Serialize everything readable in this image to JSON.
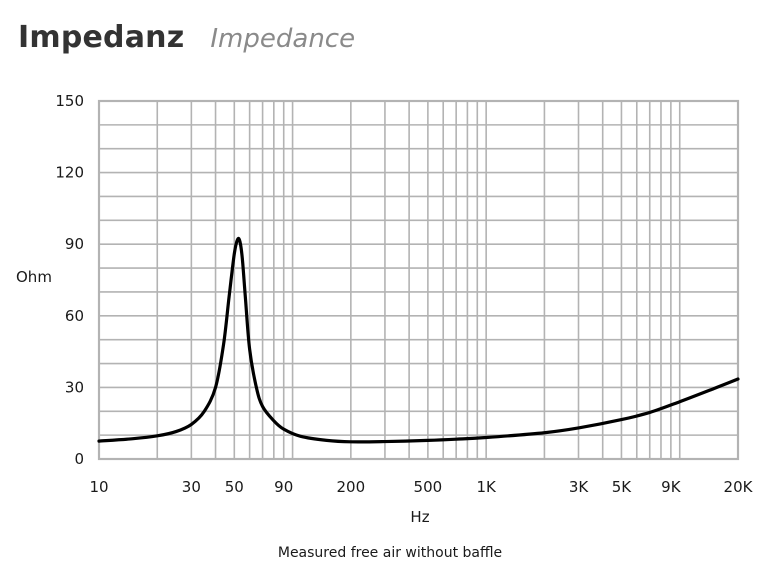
{
  "header": {
    "title": "Impedanz",
    "subtitle": "Impedance"
  },
  "footer": {
    "note": "Measured free air without baffle"
  },
  "chart_data": {
    "type": "line",
    "title": "Impedanz",
    "subtitle": "Impedance",
    "xlabel": "Hz",
    "ylabel": "Ohm",
    "xscale": "log",
    "xlim": [
      10,
      20000
    ],
    "ylim": [
      0,
      150
    ],
    "grid": true,
    "x_ticks": [
      10,
      30,
      50,
      90,
      200,
      500,
      1000,
      3000,
      5000,
      9000,
      20000
    ],
    "x_tick_labels": [
      "10",
      "30",
      "50",
      "90",
      "200",
      "500",
      "1K",
      "3K",
      "5K",
      "9K",
      "20K"
    ],
    "y_ticks": [
      0,
      30,
      60,
      90,
      120,
      150
    ],
    "y_tick_labels": [
      "0",
      "30",
      "60",
      "90",
      "120",
      "150"
    ],
    "x_gridlines": [
      10,
      20,
      30,
      40,
      50,
      60,
      70,
      80,
      90,
      100,
      200,
      300,
      400,
      500,
      600,
      700,
      800,
      900,
      1000,
      2000,
      3000,
      4000,
      5000,
      6000,
      7000,
      8000,
      9000,
      10000,
      20000
    ],
    "y_gridlines": [
      0,
      10,
      20,
      30,
      40,
      50,
      60,
      70,
      80,
      90,
      100,
      110,
      120,
      130,
      140,
      150
    ],
    "colors": {
      "line": "#000000",
      "grid": "#b3b3b3"
    },
    "series": [
      {
        "x": [
          10,
          15,
          20,
          25,
          30,
          35,
          40,
          44,
          47,
          50,
          52,
          53.5,
          55,
          57,
          60,
          65,
          70,
          80,
          90,
          110,
          150,
          200,
          300,
          500,
          700,
          1000,
          2000,
          3000,
          5000,
          7000,
          10000,
          15000,
          20000
        ],
        "y": [
          7.5,
          8.5,
          9.7,
          11.5,
          14.5,
          20,
          30,
          48,
          68,
          86,
          92,
          91,
          84,
          68,
          46,
          30,
          22,
          16,
          12.5,
          9.5,
          7.8,
          7.2,
          7.3,
          7.8,
          8.3,
          9,
          11,
          13,
          16.5,
          19.5,
          24,
          29.5,
          33.5
        ]
      }
    ]
  }
}
